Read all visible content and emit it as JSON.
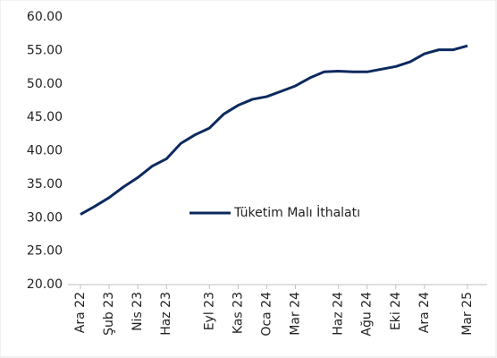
{
  "chart_data": {
    "type": "line",
    "categories": [
      "Ara 22",
      null,
      "Şub 23",
      null,
      "Nis 23",
      null,
      "Haz 23",
      null,
      null,
      "Eyl 23",
      null,
      "Kas 23",
      null,
      "Oca 24",
      null,
      "Mar 24",
      null,
      null,
      "Haz 24",
      null,
      "Ağu 24",
      null,
      "Eki 24",
      null,
      "Ara 24",
      null,
      null,
      "Mar 25"
    ],
    "series": [
      {
        "name": "Tüketim Malı İthalatı",
        "color": "#0d2a5e",
        "values": [
          30.5,
          31.7,
          33.0,
          34.6,
          36.0,
          37.7,
          38.8,
          41.1,
          42.4,
          43.4,
          45.5,
          46.8,
          47.7,
          48.1,
          48.9,
          49.7,
          50.9,
          51.8,
          51.9,
          51.8,
          51.8,
          52.2,
          52.6,
          53.3,
          54.5,
          55.1,
          55.1,
          55.7
        ]
      }
    ],
    "ylim": [
      20,
      60
    ],
    "yticks": [
      {
        "value": 20,
        "label": "20.00"
      },
      {
        "value": 25,
        "label": "25.00"
      },
      {
        "value": 30,
        "label": "30.00"
      },
      {
        "value": 35,
        "label": "35.00"
      },
      {
        "value": 40,
        "label": "40.00"
      },
      {
        "value": 45,
        "label": "45.00"
      },
      {
        "value": 50,
        "label": "50.00"
      },
      {
        "value": 55,
        "label": "55.00"
      },
      {
        "value": 60,
        "label": "60.00"
      }
    ],
    "grid": false
  }
}
